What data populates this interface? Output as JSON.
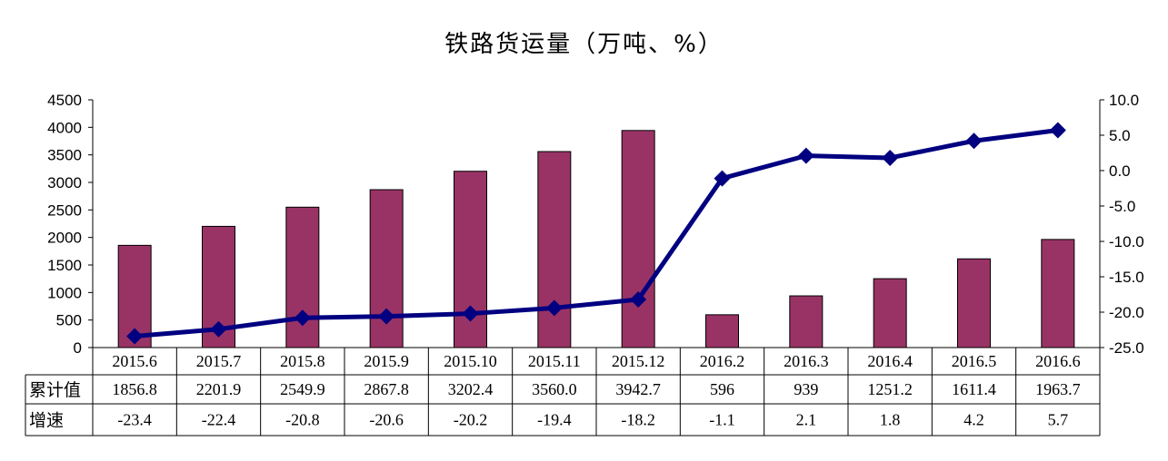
{
  "chart_data": {
    "type": "bar+line",
    "title": "铁路货运量（万吨、%）",
    "categories": [
      "2015.6",
      "2015.7",
      "2015.8",
      "2015.9",
      "2015.10",
      "2015.11",
      "2015.12",
      "2016.2",
      "2016.3",
      "2016.4",
      "2016.5",
      "2016.6"
    ],
    "series": [
      {
        "name": "累计值",
        "type": "bar",
        "axis": "left",
        "color": "#993366",
        "values": [
          1856.8,
          2201.9,
          2549.9,
          2867.8,
          3202.4,
          3560.0,
          3942.7,
          596,
          939,
          1251.2,
          1611.4,
          1963.7
        ],
        "labels": [
          "1856.8",
          "2201.9",
          "2549.9",
          "2867.8",
          "3202.4",
          "3560.0",
          "3942.7",
          "596",
          "939",
          "1251.2",
          "1611.4",
          "1963.7"
        ]
      },
      {
        "name": "增速",
        "type": "line",
        "axis": "right",
        "color": "#000080",
        "values": [
          -23.4,
          -22.4,
          -20.8,
          -20.6,
          -20.2,
          -19.4,
          -18.2,
          -1.1,
          2.1,
          1.8,
          4.2,
          5.7
        ],
        "labels": [
          "-23.4",
          "-22.4",
          "-20.8",
          "-20.6",
          "-20.2",
          "-19.4",
          "-18.2",
          "-1.1",
          "2.1",
          "1.8",
          "4.2",
          "5.7"
        ]
      }
    ],
    "yleft": {
      "min": 0,
      "max": 4500,
      "ticks": [
        "0",
        "500",
        "1000",
        "1500",
        "2000",
        "2500",
        "3000",
        "3500",
        "4000",
        "4500"
      ]
    },
    "yright": {
      "min": -25,
      "max": 10,
      "ticks": [
        "-25.0",
        "-20.0",
        "-15.0",
        "-10.0",
        "-5.0",
        "0.0",
        "5.0",
        "10.0"
      ]
    },
    "grid": false,
    "legend": "data-table"
  }
}
